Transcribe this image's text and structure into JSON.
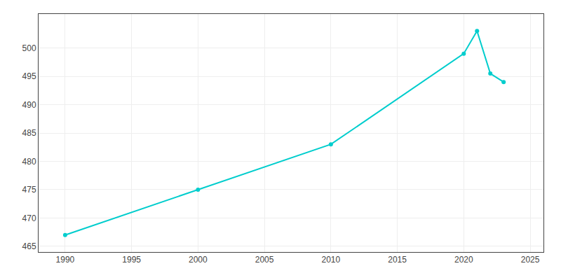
{
  "chart_data": {
    "type": "line",
    "x": [
      1990,
      2000,
      2010,
      2020,
      2021,
      2022,
      2023
    ],
    "values": [
      467,
      475,
      483,
      499,
      503,
      495.5,
      494
    ],
    "color": "#00CDCD",
    "marker": "circle",
    "xlim": [
      1988,
      2026
    ],
    "ylim": [
      464,
      506
    ],
    "xticks": [
      1990,
      1995,
      2000,
      2005,
      2010,
      2015,
      2020,
      2025
    ],
    "yticks": [
      465,
      470,
      475,
      480,
      485,
      490,
      495,
      500
    ],
    "grid": true
  }
}
